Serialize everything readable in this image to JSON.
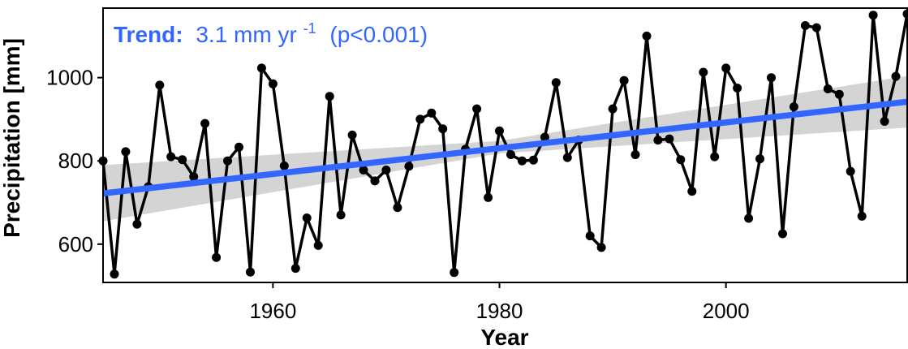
{
  "chart_data": {
    "type": "line",
    "xlabel": "Year",
    "ylabel": "Precipitation [mm]",
    "xlim": [
      1945,
      2016
    ],
    "ylim": [
      508,
      1167
    ],
    "xticks": [
      "1960",
      "1980",
      "2000"
    ],
    "yticks": [
      "600",
      "800",
      "1000"
    ],
    "grid": false,
    "annotation": {
      "bold_part": "Trend:",
      "value_part": "3.1 mm yr",
      "superscript": "-1",
      "suffix": "(p<0.001)"
    },
    "trend": {
      "start": [
        1945,
        722
      ],
      "end": [
        2016,
        942
      ]
    },
    "confidence_band": {
      "lower": [
        [
          1945,
          655
        ],
        [
          1980,
          818
        ],
        [
          2016,
          880
        ]
      ],
      "upper": [
        [
          1945,
          790
        ],
        [
          1980,
          848
        ],
        [
          2016,
          1004
        ]
      ]
    },
    "colors": {
      "trend": "#3366ff",
      "series": "#000000",
      "band": "#cccccc"
    },
    "series": [
      {
        "x": [
          1945,
          1946,
          1947,
          1948,
          1949,
          1950,
          1951,
          1952,
          1953,
          1954,
          1955,
          1956,
          1957,
          1958,
          1959,
          1960,
          1961,
          1962,
          1963,
          1964,
          1965,
          1966,
          1967,
          1968,
          1969,
          1970,
          1971,
          1972,
          1973,
          1974,
          1975,
          1976,
          1977,
          1978,
          1979,
          1980,
          1981,
          1982,
          1983,
          1984,
          1985,
          1986,
          1987,
          1988,
          1989,
          1990,
          1991,
          1992,
          1993,
          1994,
          1995,
          1996,
          1997,
          1998,
          1999,
          2000,
          2001,
          2002,
          2003,
          2004,
          2005,
          2006,
          2007,
          2008,
          2009,
          2010,
          2011,
          2012,
          2013,
          2014,
          2015,
          2016
        ],
        "values": [
          800,
          528,
          822,
          648,
          738,
          982,
          810,
          803,
          762,
          890,
          568,
          800,
          833,
          533,
          1023,
          985,
          788,
          542,
          663,
          597,
          955,
          670,
          862,
          778,
          752,
          778,
          688,
          787,
          900,
          915,
          877,
          532,
          828,
          925,
          712,
          872,
          815,
          800,
          802,
          857,
          988,
          808,
          850,
          620,
          592,
          925,
          993,
          815,
          1100,
          850,
          853,
          803,
          727,
          1013,
          810,
          1023,
          975,
          662,
          805,
          1000,
          625,
          930,
          1125,
          1120,
          973,
          960,
          775,
          667,
          1150,
          895,
          1003,
          1153
        ]
      }
    ]
  }
}
